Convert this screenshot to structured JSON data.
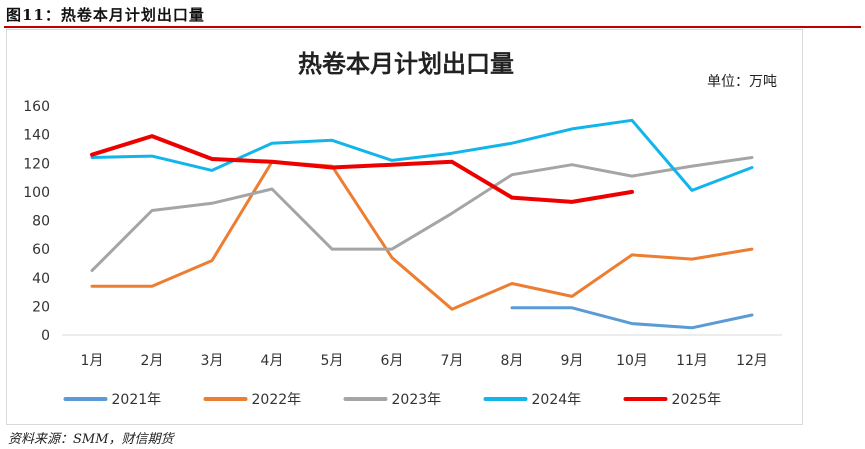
{
  "caption": "图11：热卷本月计划出口量",
  "source": "资料来源：SMM，财信期货",
  "colors": {
    "2021年": "#5b9bd5",
    "2022年": "#ed7d31",
    "2023年": "#a5a5a5",
    "2024年": "#11b5ea",
    "2025年": "#ee0000"
  },
  "chart_data": {
    "type": "line",
    "title": "热卷本月计划出口量",
    "unit": "单位：万吨",
    "categories": [
      "1月",
      "2月",
      "3月",
      "4月",
      "5月",
      "6月",
      "7月",
      "8月",
      "9月",
      "10月",
      "11月",
      "12月"
    ],
    "ylim": [
      0,
      160
    ],
    "yticks": [
      0,
      20,
      40,
      60,
      80,
      100,
      120,
      140,
      160
    ],
    "grid": false,
    "legend_position": "bottom",
    "series": [
      {
        "name": "2021年",
        "values": [
          null,
          null,
          null,
          null,
          null,
          null,
          null,
          19,
          19,
          8,
          5,
          14
        ]
      },
      {
        "name": "2022年",
        "values": [
          34,
          34,
          52,
          121,
          118,
          54,
          18,
          36,
          27,
          56,
          53,
          60
        ]
      },
      {
        "name": "2023年",
        "values": [
          45,
          87,
          92,
          102,
          60,
          60,
          85,
          112,
          119,
          111,
          118,
          124
        ]
      },
      {
        "name": "2024年",
        "values": [
          124,
          125,
          115,
          134,
          136,
          122,
          127,
          134,
          144,
          150,
          101,
          117
        ]
      },
      {
        "name": "2025年",
        "values": [
          126,
          139,
          123,
          121,
          117,
          119,
          121,
          96,
          93,
          100,
          null,
          null
        ]
      }
    ]
  }
}
